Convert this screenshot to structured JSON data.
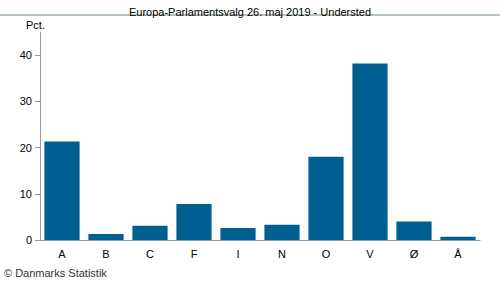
{
  "chart_data": {
    "type": "bar",
    "title": "Europa-Parlamentsvalg 26. maj 2019 - Understed",
    "ylabel": "Pct.",
    "annotations": [
      "© Danmarks Statistik"
    ],
    "categories": [
      "A",
      "B",
      "C",
      "F",
      "I",
      "N",
      "O",
      "V",
      "Ø",
      "Å"
    ],
    "values": [
      21.3,
      1.3,
      3.1,
      7.8,
      2.6,
      3.3,
      18.0,
      38.2,
      4.0,
      0.7
    ],
    "color": "#005f91",
    "ylim": [
      0,
      45
    ],
    "yticks": [
      0,
      10,
      20,
      30,
      40
    ],
    "grid": false
  }
}
